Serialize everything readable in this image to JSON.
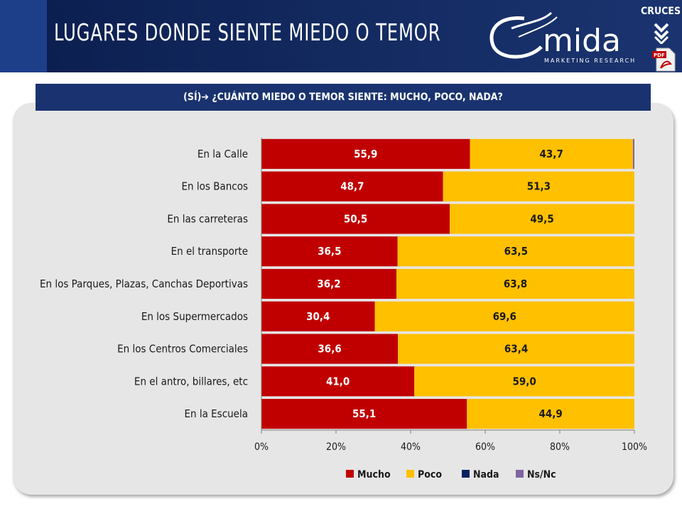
{
  "header": {
    "title": "LUGARES DONDE SIENTE MIEDO O TEMOR",
    "logo_text": "mida",
    "logo_subtext": "MARKETING RESEARCH",
    "cruces_label": "CRUCES",
    "pdf_label": "PDF"
  },
  "subtitle": "(SÍ)➔ ¿CUÁNTO MIEDO O TEMOR SIENTE: MUCHO, POCO, NADA?",
  "colors": {
    "header_bg": "#12295e",
    "subtitle_bg": "#1a3370",
    "panel_bg": "#e6e6e6",
    "mucho": "#c00000",
    "poco": "#ffc000",
    "nada": "#0b2060",
    "nsnc": "#8064a2"
  },
  "chart_data": {
    "type": "bar",
    "orientation": "horizontal",
    "stacked": true,
    "categories": [
      "En la Calle",
      "En los Bancos",
      "En las carreteras",
      "En el transporte",
      "En los Parques, Plazas, Canchas Deportivas",
      "En los Supermercados",
      "En los Centros Comerciales",
      "En el antro, billares, etc",
      "En la Escuela"
    ],
    "series": [
      {
        "name": "Mucho",
        "color": "#c00000",
        "values": [
          55.9,
          48.7,
          50.5,
          36.5,
          36.2,
          30.4,
          36.6,
          41.0,
          55.1
        ],
        "labels": [
          "55,9",
          "48,7",
          "50,5",
          "36,5",
          "36,2",
          "30,4",
          "36,6",
          "41,0",
          "55,1"
        ]
      },
      {
        "name": "Poco",
        "color": "#ffc000",
        "values": [
          43.7,
          51.3,
          49.5,
          63.5,
          63.8,
          69.6,
          63.4,
          59.0,
          44.9
        ],
        "labels": [
          "43,7",
          "51,3",
          "49,5",
          "63,5",
          "63,8",
          "69,6",
          "63,4",
          "59,0",
          "44,9"
        ]
      },
      {
        "name": "Nada",
        "color": "#0b2060",
        "values": [
          0,
          0,
          0,
          0,
          0,
          0,
          0,
          0,
          0
        ],
        "labels": []
      },
      {
        "name": "Ns/Nc",
        "color": "#8064a2",
        "values": [
          0.4,
          0,
          0,
          0,
          0,
          0,
          0,
          0,
          0
        ],
        "labels": []
      }
    ],
    "xlim": [
      0,
      100
    ],
    "xticks": [
      "0%",
      "20%",
      "40%",
      "60%",
      "80%",
      "100%"
    ],
    "grid": false,
    "legend_position": "bottom"
  }
}
